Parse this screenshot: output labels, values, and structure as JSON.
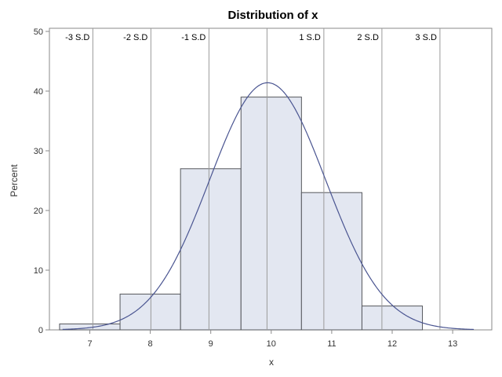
{
  "chart_data": {
    "type": "histogram",
    "title": "Distribution of x",
    "xlabel": "x",
    "ylabel": "Percent",
    "xlim": [
      6.5,
      13.6
    ],
    "ylim": [
      0,
      50
    ],
    "x_ticks": [
      7,
      8,
      9,
      10,
      11,
      12,
      13
    ],
    "y_ticks": [
      0,
      10,
      20,
      30,
      40,
      50
    ],
    "bins": [
      {
        "center": 7,
        "width": 1,
        "value": 1
      },
      {
        "center": 8,
        "width": 1,
        "value": 6
      },
      {
        "center": 9,
        "width": 1,
        "value": 27
      },
      {
        "center": 10,
        "width": 1,
        "value": 39
      },
      {
        "center": 11,
        "width": 1,
        "value": 23
      },
      {
        "center": 12,
        "width": 1,
        "value": 4
      }
    ],
    "normal_curve": {
      "mean": 9.94,
      "sd": 0.96,
      "peak_percent": 41.4
    },
    "reference_lines": [
      {
        "x": 7.05,
        "label": "-3 S.D"
      },
      {
        "x": 8.01,
        "label": "-2 S.D"
      },
      {
        "x": 8.97,
        "label": "-1 S.D"
      },
      {
        "x": 9.93,
        "label": ""
      },
      {
        "x": 10.87,
        "label": "1 S.D"
      },
      {
        "x": 11.83,
        "label": "2 S.D"
      },
      {
        "x": 12.79,
        "label": "3 S.D"
      }
    ],
    "colors": {
      "bar_fill": "#e3e7f1",
      "bar_stroke": "#55575c",
      "curve": "#4a5591",
      "ref_line": "#9a9a9a",
      "axis": "#8a8a8a"
    }
  }
}
